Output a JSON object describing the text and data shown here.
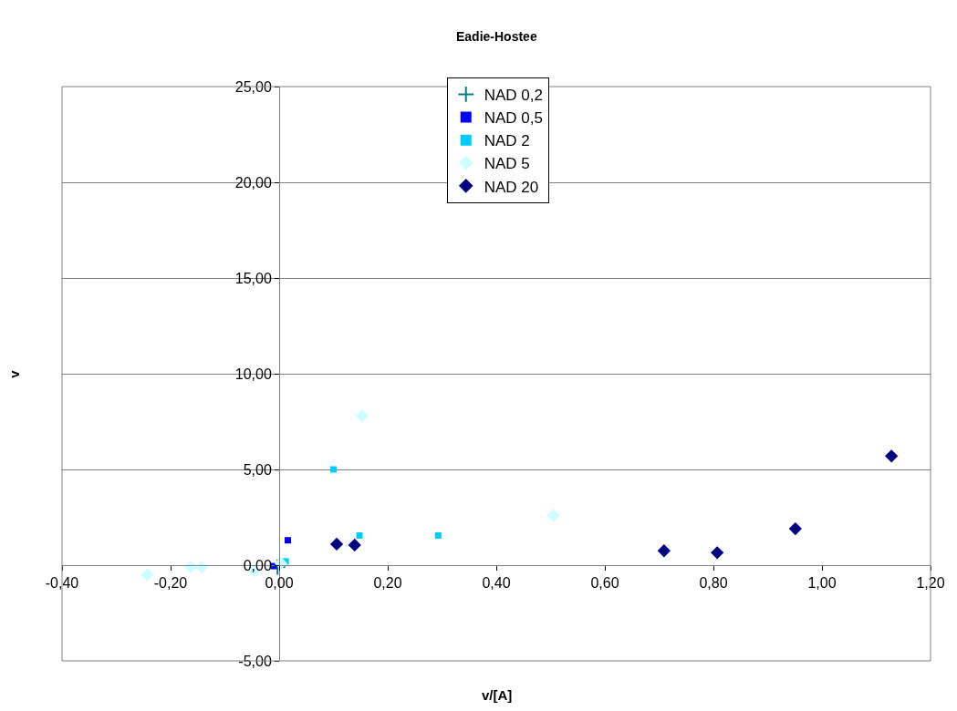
{
  "chart_data": {
    "type": "scatter",
    "title": "Eadie-Hostee",
    "xlabel": "v/[A]",
    "ylabel": "v",
    "xlim": [
      -0.4,
      1.2
    ],
    "ylim": [
      -5,
      25
    ],
    "xticks": [
      {
        "value": -0.4,
        "label": "-0,40"
      },
      {
        "value": -0.2,
        "label": "-0,20"
      },
      {
        "value": 0,
        "label": "0,00"
      },
      {
        "value": 0.2,
        "label": "0,20"
      },
      {
        "value": 0.4,
        "label": "0,40"
      },
      {
        "value": 0.6,
        "label": "0,60"
      },
      {
        "value": 0.8,
        "label": "0,80"
      },
      {
        "value": 1.0,
        "label": "1,00"
      },
      {
        "value": 1.2,
        "label": "1,20"
      }
    ],
    "yticks": [
      {
        "value": -5,
        "label": "-5,00"
      },
      {
        "value": 0,
        "label": "0,00"
      },
      {
        "value": 5,
        "label": "5,00"
      },
      {
        "value": 10,
        "label": "10,00"
      },
      {
        "value": 15,
        "label": "15,00"
      },
      {
        "value": 20,
        "label": "20,00"
      },
      {
        "value": 25,
        "label": "25,00"
      }
    ],
    "grid": "y",
    "legend": "top",
    "series": [
      {
        "name": "NAD 0,2",
        "color": "#008080",
        "marker": "cross",
        "x": [
          -0.003
        ],
        "values": [
          -0.1
        ]
      },
      {
        "name": "NAD 0,5",
        "color": "#0000ff",
        "marker": "square",
        "x": [
          -0.01,
          0.016
        ],
        "values": [
          -0.05,
          1.3
        ]
      },
      {
        "name": "NAD 2",
        "color": "#00ccff",
        "marker": "square",
        "x": [
          0.1,
          0.148,
          0.293,
          0.012
        ],
        "values": [
          5.0,
          1.55,
          1.55,
          0.2
        ]
      },
      {
        "name": "NAD 5",
        "color": "#ccffff",
        "marker": "diamond",
        "x": [
          -0.243,
          -0.163,
          -0.143,
          -0.045,
          0.003,
          0.153,
          0.505
        ],
        "values": [
          -0.5,
          -0.1,
          -0.1,
          -0.3,
          0.1,
          7.8,
          2.6
        ]
      },
      {
        "name": "NAD 20",
        "color": "#000080",
        "marker": "diamond",
        "x": [
          0.106,
          0.139,
          0.709,
          0.807,
          0.951,
          1.128
        ],
        "values": [
          1.1,
          1.05,
          0.75,
          0.65,
          1.9,
          5.7
        ]
      }
    ]
  }
}
